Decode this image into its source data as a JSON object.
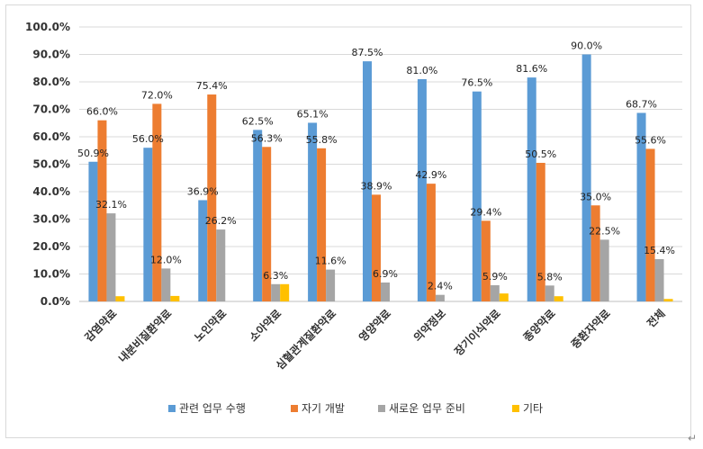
{
  "chart_data": {
    "type": "bar",
    "categories": [
      "감염약료",
      "내분비질환약료",
      "노인약료",
      "소아약료",
      "심혈관계질환약료",
      "영양약료",
      "의약정보",
      "장기이식약료",
      "종양약료",
      "중환자약료",
      "전체"
    ],
    "series": [
      {
        "name": "관련 업무 수행",
        "color": "#5b9bd5",
        "values": [
          50.9,
          56.0,
          36.9,
          62.5,
          65.1,
          87.5,
          81.0,
          76.5,
          81.6,
          90.0,
          68.7
        ],
        "labels": [
          "50.9%",
          "56.0%",
          "36.9%",
          "62.5%",
          "65.1%",
          "87.5%",
          "81.0%",
          "76.5%",
          "81.6%",
          "90.0%",
          "68.7%"
        ]
      },
      {
        "name": "자기 개발",
        "color": "#ed7d31",
        "values": [
          66.0,
          72.0,
          75.4,
          56.3,
          55.8,
          38.9,
          42.9,
          29.4,
          50.5,
          35.0,
          55.6
        ],
        "labels": [
          "66.0%",
          "72.0%",
          "75.4%",
          "56.3%",
          "55.8%",
          "38.9%",
          "42.9%",
          "29.4%",
          "50.5%",
          "35.0%",
          "55.6%"
        ]
      },
      {
        "name": "새로운 업무 준비",
        "color": "#a5a5a5",
        "values": [
          32.1,
          12.0,
          26.2,
          6.3,
          11.6,
          6.9,
          2.4,
          5.9,
          5.8,
          22.5,
          15.4
        ],
        "labels": [
          "32.1%",
          "12.0%",
          "26.2%",
          "6.3%",
          "11.6%",
          "6.9%",
          "2.4%",
          "5.9%",
          "5.8%",
          "22.5%",
          "15.4%"
        ]
      },
      {
        "name": "기타",
        "color": "#ffc000",
        "values": [
          1.9,
          2.0,
          0,
          6.3,
          0,
          0,
          0,
          2.9,
          1.9,
          0,
          0.9
        ],
        "labels": [
          "",
          "",
          "",
          "",
          "",
          "",
          "",
          "",
          "",
          "",
          ""
        ]
      }
    ],
    "yticks": [
      "0.0%",
      "10.0%",
      "20.0%",
      "30.0%",
      "40.0%",
      "50.0%",
      "60.0%",
      "70.0%",
      "80.0%",
      "90.0%",
      "100.0%"
    ],
    "ylim": [
      0,
      100
    ],
    "grid": true,
    "legend_position": "bottom"
  },
  "return_mark": "↵"
}
